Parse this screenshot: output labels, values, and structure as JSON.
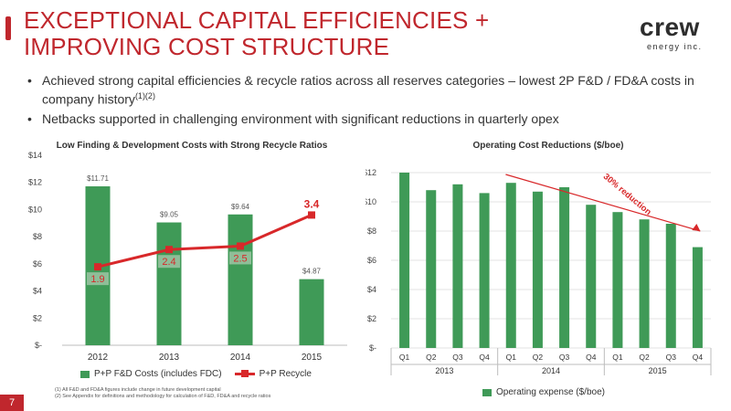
{
  "title": "EXCEPTIONAL CAPITAL EFFICIENCIES + IMPROVING COST STRUCTURE",
  "logo": {
    "word": "crew",
    "sub": "energy inc."
  },
  "bullets": [
    {
      "text": "Achieved strong capital efficiencies & recycle ratios across all reserves categories – lowest 2P F&D / FD&A costs in company history",
      "sup": "(1)(2)"
    },
    {
      "text": "Netbacks supported in challenging environment with significant reductions in quarterly opex",
      "sup": ""
    }
  ],
  "colors": {
    "accent": "#c0272d",
    "bar": "#3f9a57",
    "recycle": "#d8282a",
    "bar_highlight": "#8fbe98"
  },
  "chart_data": [
    {
      "type": "bar",
      "title": "Low Finding & Development Costs with Strong Recycle Ratios",
      "categories": [
        "2012",
        "2013",
        "2014",
        "2015"
      ],
      "y_ticks": [
        "$-",
        "$2",
        "$4",
        "$6",
        "$8",
        "$10",
        "$12",
        "$14"
      ],
      "ylim": [
        0,
        14
      ],
      "series": [
        {
          "name": "P+P F&D Costs (includes FDC)",
          "type": "bar",
          "values": [
            11.71,
            9.05,
            9.64,
            4.87
          ],
          "labels": [
            "$11.71",
            "$9.05",
            "$9.64",
            "$4.87"
          ]
        },
        {
          "name": "P+P Recycle",
          "type": "line",
          "values": [
            1.9,
            2.4,
            2.5,
            3.4
          ],
          "labels": [
            "1.9",
            "2.4",
            "2.5",
            "3.4"
          ]
        }
      ],
      "legend_position": "bottom"
    },
    {
      "type": "bar",
      "title": "Operating Cost Reductions ($/boe)",
      "categories": [
        "Q1",
        "Q2",
        "Q3",
        "Q4",
        "Q1",
        "Q2",
        "Q3",
        "Q4",
        "Q1",
        "Q2",
        "Q3",
        "Q4"
      ],
      "groups": [
        "2013",
        "2014",
        "2015"
      ],
      "y_ticks": [
        "$-",
        "$2",
        "$4",
        "$6",
        "$8",
        "$10",
        "$12"
      ],
      "ylim": [
        0,
        12
      ],
      "series": [
        {
          "name": "Operating expense ($/boe)",
          "values": [
            12.0,
            10.8,
            11.2,
            10.6,
            11.3,
            10.7,
            11.0,
            9.8,
            9.3,
            8.8,
            8.5,
            6.9
          ]
        }
      ],
      "annotation": "30% reduction",
      "legend_position": "bottom"
    }
  ],
  "footnotes": [
    "(1)    All F&D and FD&A figures include change in future development capital",
    "(2)    See Appendix for definitions and methodology for calculation of F&D, FD&A and recycle ratios"
  ],
  "page_number": "7"
}
